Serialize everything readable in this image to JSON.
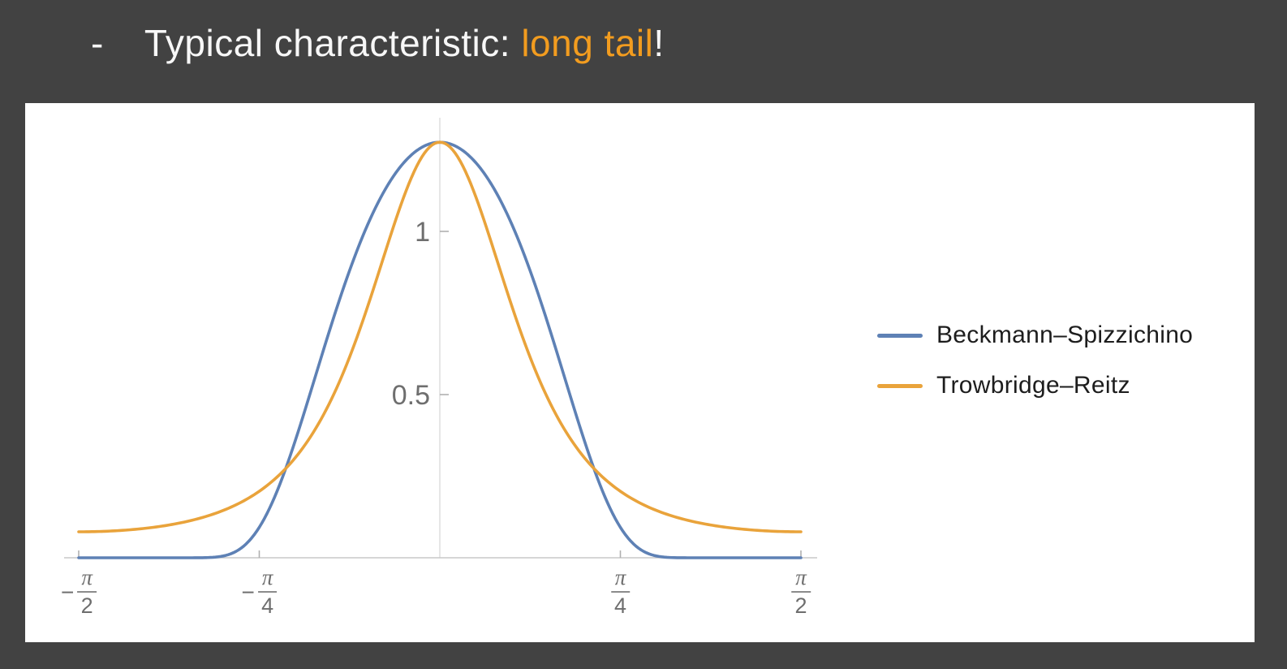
{
  "slide": {
    "background_color": "#424242",
    "bullet": {
      "dash": "-",
      "text": "Typical characteristic: ",
      "highlight": "long tail",
      "suffix": "!",
      "text_color": "#f7f7f7",
      "highlight_color": "#F29C1F"
    }
  },
  "chart_data": {
    "type": "line",
    "title": "",
    "xlabel": "",
    "ylabel": "",
    "grid": false,
    "background": "#ffffff",
    "axis_color": "#c9c9c9",
    "y_axis_line_color": "#e0e0e0",
    "tick_color": "#b0b0b0",
    "tick_label_color": "#6e6e6e",
    "legend_position": "right-outside",
    "alpha_roughness": 0.5,
    "peak_value": 1.2732,
    "x_axis": {
      "domain_radians": [
        -1.5708,
        1.5708
      ],
      "minus_sign": "−",
      "ticks": [
        {
          "value_over_pi": -0.5,
          "numerator": "π",
          "denominator": "2",
          "negative": true
        },
        {
          "value_over_pi": -0.25,
          "numerator": "π",
          "denominator": "4",
          "negative": true
        },
        {
          "value_over_pi": 0.25,
          "numerator": "π",
          "denominator": "4",
          "negative": false
        },
        {
          "value_over_pi": 0.5,
          "numerator": "π",
          "denominator": "2",
          "negative": false
        }
      ]
    },
    "y_axis": {
      "ylim": [
        0,
        1.36
      ],
      "ticks": [
        {
          "value": 0.5,
          "label": "0.5"
        },
        {
          "value": 1,
          "label": "1"
        }
      ]
    },
    "samples_x_over_pi": [
      -0.5,
      -0.4375,
      -0.375,
      -0.3125,
      -0.25,
      -0.1875,
      -0.125,
      -0.0625,
      0,
      0.0625,
      0.125,
      0.1875,
      0.25,
      0.3125,
      0.375,
      0.4375,
      0.5
    ],
    "series": [
      {
        "name": "Beckmann–Spizzichino",
        "color": "#5E81B5",
        "formula": "beckmann",
        "samples_y": [
          0,
          0,
          0,
          0.0017,
          0.0933,
          0.4466,
          0.8799,
          1.1746,
          1.2732,
          1.1746,
          0.8799,
          0.4466,
          0.0933,
          0.0017,
          0,
          0,
          0
        ]
      },
      {
        "name": "Trowbridge–Reitz",
        "color": "#E9A33B",
        "formula": "trowbridge-reitz",
        "samples_y": [
          0.0796,
          0.0843,
          0.1004,
          0.1347,
          0.2037,
          0.3432,
          0.6146,
          1.0256,
          1.2732,
          1.0256,
          0.6146,
          0.3432,
          0.2037,
          0.1347,
          0.1004,
          0.0843,
          0.0796
        ]
      }
    ]
  }
}
